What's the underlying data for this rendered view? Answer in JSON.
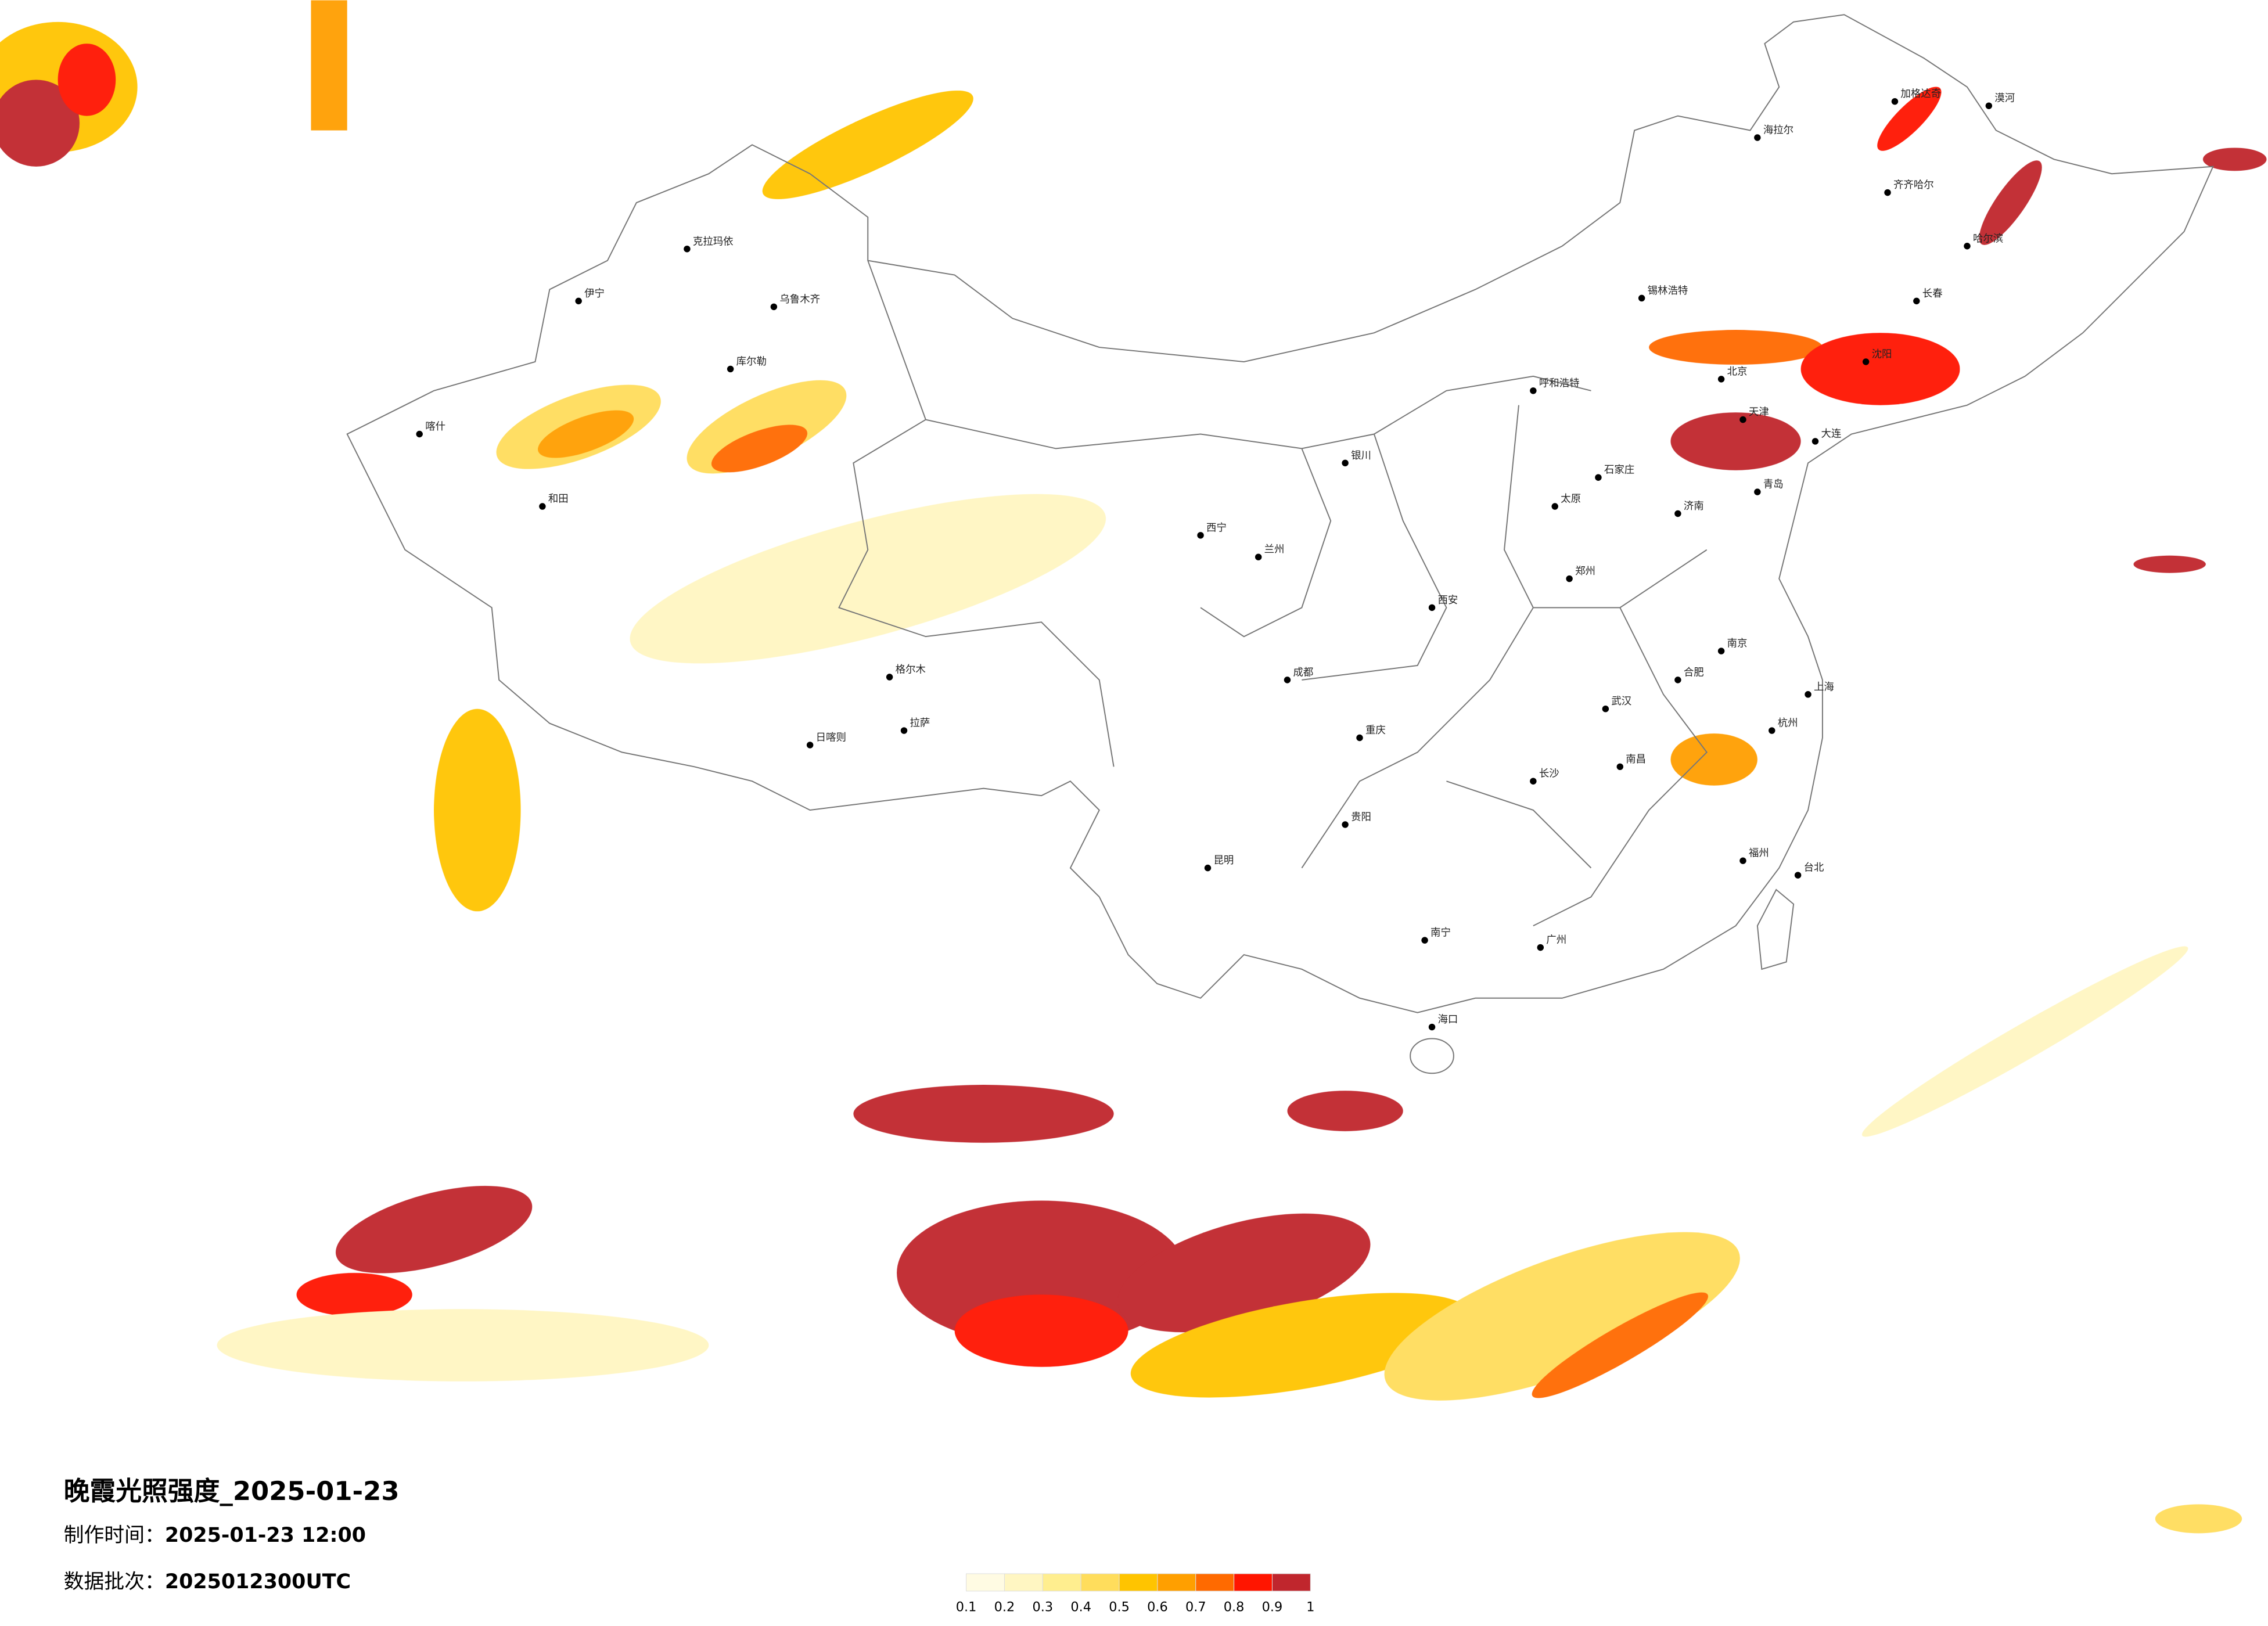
{
  "title": "晚霞光照强度_2025-01-23",
  "made_label": "制作时间：",
  "made_time": "2025-01-23 12:00",
  "batch_label": "数据批次：",
  "batch": "2025012300UTC",
  "legend": {
    "ticks": [
      0.1,
      0.2,
      0.3,
      0.4,
      0.5,
      0.6,
      0.7,
      0.8,
      0.9,
      1
    ],
    "colors": [
      "#fffbe3",
      "#fff6c2",
      "#ffee8f",
      "#ffdd5c",
      "#ffc400",
      "#ff9f00",
      "#ff6a00",
      "#ff1500",
      "#c0262d"
    ]
  },
  "cities": [
    "漠河",
    "加格达奇",
    "海拉尔",
    "齐齐哈尔",
    "哈尔滨",
    "长春",
    "沈阳",
    "呼和浩特",
    "北京",
    "天津",
    "石家庄",
    "太原",
    "济南",
    "郑州",
    "西安",
    "兰州",
    "西宁",
    "银川",
    "乌鲁木齐",
    "克拉玛依",
    "伊宁",
    "喀什",
    "和田",
    "库尔勒",
    "格尔木",
    "拉萨",
    "日喀则",
    "成都",
    "重庆",
    "贵阳",
    "昆明",
    "南宁",
    "广州",
    "长沙",
    "武汉",
    "南京",
    "上海",
    "杭州",
    "福州",
    "台北",
    "海口",
    "锡林浩特",
    "大连",
    "青岛",
    "合肥",
    "南昌"
  ]
}
